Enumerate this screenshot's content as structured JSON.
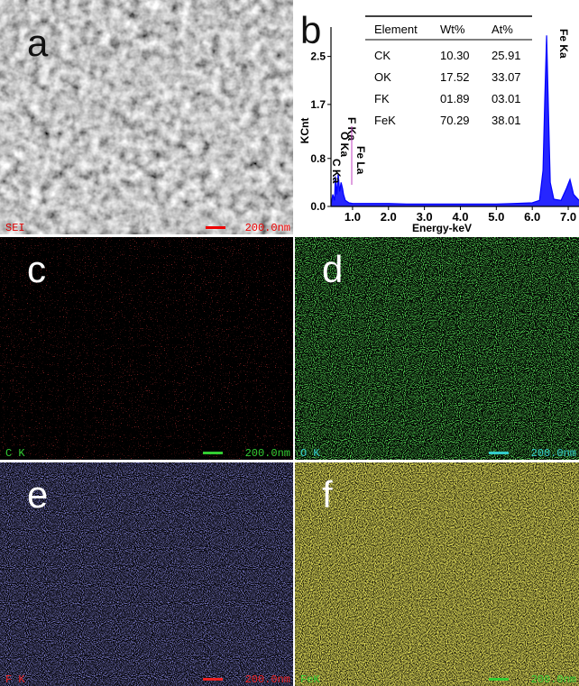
{
  "sem": {
    "letter": "a",
    "detector": "SEI",
    "scale_bar": "200.0nm"
  },
  "spectrum": {
    "letter": "b",
    "type": "line",
    "x_label": "Energy-keV",
    "y_label": "KCnt",
    "x": [
      0.4,
      0.45,
      0.5,
      0.52,
      0.56,
      0.6,
      0.64,
      0.68,
      0.72,
      0.75,
      0.8,
      0.9,
      1.0,
      1.5,
      2.0,
      2.5,
      3.0,
      3.5,
      4.0,
      4.5,
      5.0,
      5.5,
      6.0,
      6.2,
      6.3,
      6.35,
      6.4,
      6.45,
      6.5,
      6.6,
      6.8,
      6.95,
      7.05,
      7.15,
      7.3
    ],
    "values": [
      0.02,
      0.2,
      0.1,
      0.5,
      0.2,
      0.55,
      0.25,
      0.4,
      0.3,
      0.2,
      0.1,
      0.06,
      0.05,
      0.05,
      0.05,
      0.04,
      0.04,
      0.04,
      0.04,
      0.04,
      0.04,
      0.05,
      0.06,
      0.1,
      0.6,
      1.8,
      2.85,
      1.6,
      0.4,
      0.12,
      0.1,
      0.3,
      0.45,
      0.2,
      0.1
    ],
    "color": "#0000ff",
    "xlim": [
      0.4,
      7.3
    ],
    "ylim": [
      0,
      2.9
    ],
    "xticks": [
      {
        "value": 1,
        "label": "1.0"
      },
      {
        "value": 2,
        "label": "2.0"
      },
      {
        "value": 3,
        "label": "3.0"
      },
      {
        "value": 4,
        "label": "4.0"
      },
      {
        "value": 5,
        "label": "5.0"
      },
      {
        "value": 6,
        "label": "6.0"
      },
      {
        "value": 7,
        "label": "7.0"
      }
    ],
    "yticks": [
      {
        "value": 0,
        "label": "0.0"
      },
      0.8,
      1.7,
      2.5
    ],
    "peak_labels": [
      "C Ka",
      "O Ka",
      "F Ka",
      "Fe La",
      "Fe Ka"
    ],
    "table": {
      "header": [
        "Element",
        "Wt%",
        "At%"
      ],
      "rows": [
        [
          "CK",
          "10.30",
          "25.91"
        ],
        [
          "OK",
          "17.52",
          "33.07"
        ],
        [
          "FK",
          "01.89",
          "03.01"
        ],
        [
          "FeK",
          "70.29",
          "38.01"
        ]
      ]
    }
  },
  "maps": [
    {
      "letter": "c",
      "element": "C K",
      "scale_bar": "200.0nm"
    },
    {
      "letter": "d",
      "element": "O K",
      "scale_bar": "200.0nm"
    },
    {
      "letter": "e",
      "element": "F K",
      "scale_bar": "200.0nm"
    },
    {
      "letter": "f",
      "element": "FeK",
      "scale_bar": "200.0nm"
    }
  ]
}
